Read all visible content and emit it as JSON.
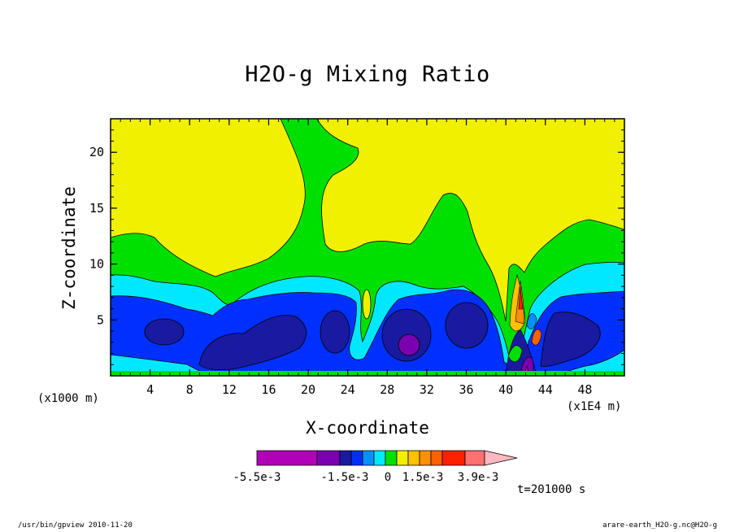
{
  "chart_data": {
    "type": "heatmap",
    "title": "H2O-g Mixing Ratio",
    "xlabel": "X-coordinate",
    "ylabel": "Z-coordinate",
    "x_unit": "(x1000 m)",
    "x_scale_note": "(x1E4 m)",
    "time_label": "t=201000 s",
    "xlim": [
      0,
      52
    ],
    "ylim": [
      0,
      23
    ],
    "x_ticks": [
      "4",
      "8",
      "12",
      "16",
      "20",
      "24",
      "28",
      "32",
      "36",
      "40",
      "44",
      "48"
    ],
    "y_ticks": [
      "5",
      "10",
      "15",
      "20"
    ],
    "colorbar": {
      "labels": [
        "-5.5e-3",
        "-1.5e-3",
        "0",
        "1.5e-3",
        "3.9e-3"
      ],
      "colors": [
        "#b000b8",
        "#7a00b0",
        "#1a1aa0",
        "#0030ff",
        "#0090ff",
        "#00e8ff",
        "#00e000",
        "#f0f000",
        "#ffc000",
        "#ff9000",
        "#ff6000",
        "#ff2000",
        "#ff7070",
        "#ffb8c0"
      ]
    }
  },
  "footer": {
    "left": "/usr/bin/gpview  2010-11-20",
    "right": "arare-earth_H2O-g.nc@H2O-g"
  }
}
